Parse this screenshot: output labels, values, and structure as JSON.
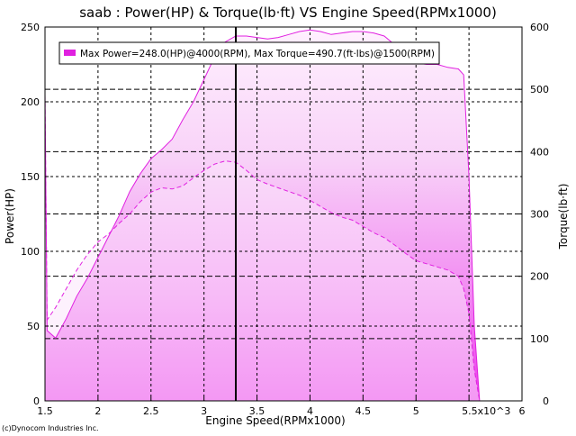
{
  "chart_data": {
    "type": "area",
    "title": "saab : Power(HP) & Torque(lb·ft) VS Engine Speed(RPMx1000)",
    "xlabel": "Engine Speed(RPMx1000)",
    "ylabel_left": "Power(HP)",
    "ylabel_right": "Torque(lb·ft)",
    "xlim": [
      1.5,
      6.0
    ],
    "ylim_left": [
      0,
      250
    ],
    "ylim_right": [
      0,
      600
    ],
    "x_ticks": [
      "1.5",
      "2",
      "2.5",
      "3",
      "3.5",
      "4",
      "4.5",
      "5",
      "5.5x10^3",
      "6"
    ],
    "y_ticks_left": [
      "0",
      "50",
      "100",
      "150",
      "200",
      "250"
    ],
    "y_ticks_right": [
      "0",
      "100",
      "200",
      "300",
      "400",
      "500",
      "600"
    ],
    "grid": true,
    "legend_position": "top-left",
    "legend_text": "Max Power=248.0(HP)@4000(RPM), Max Torque=490.7(ft·lbs)@1500(RPM)",
    "marker_x": 3.3,
    "series": [
      {
        "name": "Power",
        "axis": "left",
        "style": "solid",
        "x": [
          1.5,
          1.52,
          1.6,
          1.7,
          1.8,
          1.9,
          2.0,
          2.1,
          2.2,
          2.3,
          2.4,
          2.5,
          2.6,
          2.7,
          2.8,
          2.9,
          3.0,
          3.1,
          3.2,
          3.3,
          3.4,
          3.5,
          3.6,
          3.7,
          3.8,
          3.9,
          4.0,
          4.1,
          4.2,
          4.3,
          4.4,
          4.5,
          4.6,
          4.7,
          4.8,
          4.9,
          5.0,
          5.1,
          5.2,
          5.3,
          5.4,
          5.45,
          5.5,
          5.55,
          5.6
        ],
        "values": [
          205,
          47,
          42,
          55,
          70,
          82,
          96,
          110,
          124,
          140,
          152,
          162,
          168,
          175,
          188,
          200,
          215,
          230,
          240,
          244,
          244,
          243,
          242,
          243,
          245,
          247,
          248,
          247,
          245,
          246,
          247,
          247,
          246,
          244,
          238,
          230,
          226,
          225,
          225,
          223,
          222,
          218,
          150,
          50,
          0
        ]
      },
      {
        "name": "Torque",
        "axis": "right",
        "style": "dashed",
        "x": [
          1.5,
          1.52,
          1.6,
          1.7,
          1.8,
          1.9,
          2.0,
          2.1,
          2.2,
          2.3,
          2.4,
          2.5,
          2.6,
          2.7,
          2.8,
          2.9,
          3.0,
          3.1,
          3.2,
          3.3,
          3.4,
          3.5,
          3.6,
          3.7,
          3.8,
          3.9,
          4.0,
          4.1,
          4.2,
          4.3,
          4.4,
          4.5,
          4.6,
          4.7,
          4.8,
          4.9,
          5.0,
          5.1,
          5.2,
          5.3,
          5.4,
          5.45,
          5.5,
          5.55,
          5.6
        ],
        "values": [
          490.7,
          130,
          150,
          180,
          210,
          235,
          255,
          268,
          285,
          300,
          320,
          335,
          342,
          340,
          345,
          358,
          370,
          380,
          385,
          383,
          370,
          355,
          348,
          342,
          336,
          330,
          322,
          312,
          302,
          295,
          290,
          280,
          270,
          262,
          250,
          237,
          225,
          220,
          215,
          210,
          200,
          180,
          140,
          50,
          0
        ]
      }
    ]
  },
  "copyright": "(c)Dynocom Industries Inc.",
  "colors": {
    "series": "#e020e0",
    "fill_light": "#fbe6fb",
    "grid": "#000000",
    "marker": "#000000"
  }
}
